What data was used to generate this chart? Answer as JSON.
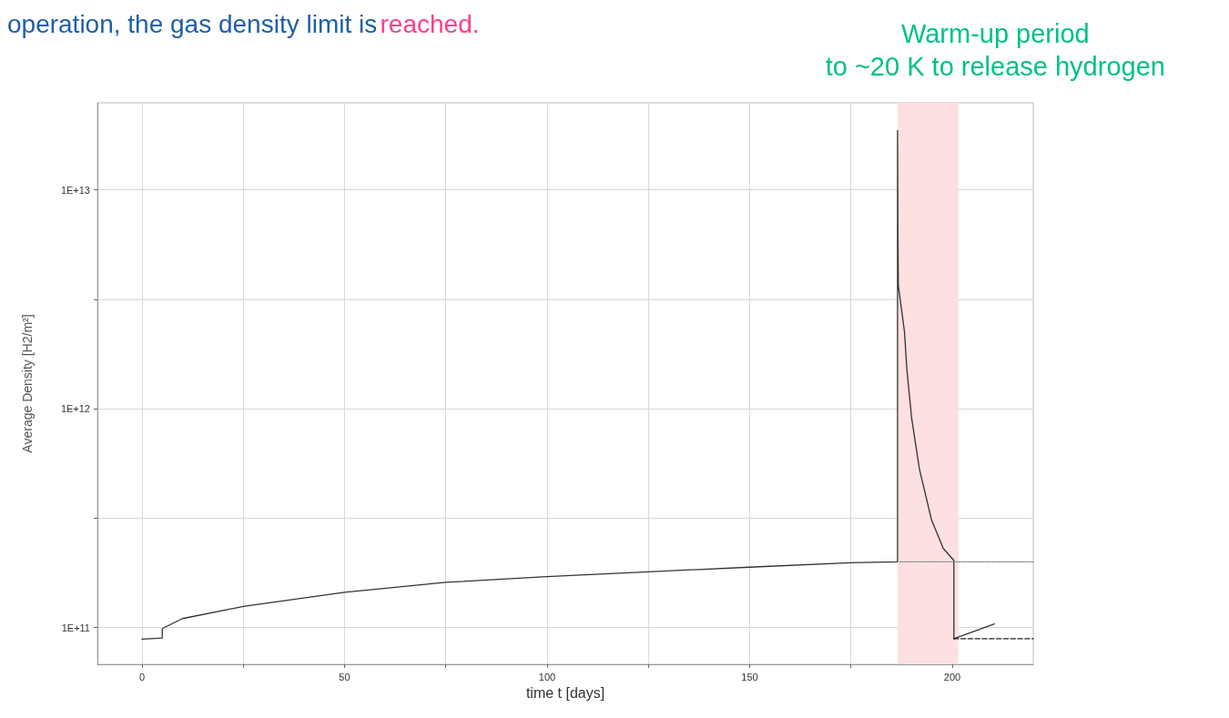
{
  "chart_data": {
    "type": "line",
    "annotations": [
      "operation, the gas density limit is",
      "reached."
    ],
    "xlabel": "time t [days]",
    "ylabel": "Average Density [H2/m²]",
    "log": "y",
    "xlim": [
      -11,
      220
    ],
    "xticks": [
      0,
      {
        "value": 25,
        "label": null
      },
      50,
      {
        "value": 75,
        "label": null
      },
      100,
      {
        "value": 125,
        "label": null
      },
      150,
      {
        "value": 175,
        "label": null
      },
      200
    ],
    "ylim": [
      68000000000.0,
      25000000000000.0
    ],
    "yticks": [
      {
        "value": 100000000000.0,
        "label": "1E+11"
      },
      {
        "value": 316000000000.0,
        "label": null
      },
      {
        "value": 1000000000000.0,
        "label": "1E+12"
      },
      {
        "value": 3160000000000.0,
        "label": null
      },
      {
        "value": 10000000000000.0,
        "label": "1E+13"
      }
    ],
    "grid": true,
    "marker": "none",
    "series": [
      {
        "color": "#333333",
        "line_style": "solid",
        "x": [
          0,
          5,
          5,
          10,
          25,
          50,
          75,
          100,
          125,
          150,
          175,
          186.5,
          186.5,
          186.6,
          186.7,
          188.2,
          188.8,
          190.0,
          191.9,
          194.9,
          197.8,
          200.4,
          200.4,
          210.4
        ],
        "values": [
          88600000000.0,
          89700000000.0,
          99000000000.0,
          110000000000.0,
          125000000000.0,
          145000000000.0,
          161000000000.0,
          171000000000.0,
          180000000000.0,
          189000000000.0,
          198000000000.0,
          200000000000.0,
          18700000000000.0,
          6000000000000.0,
          3650000000000.0,
          2260000000000.0,
          1510000000000.0,
          900000000000.0,
          530000000000.0,
          310000000000.0,
          230000000000.0,
          203000000000.0,
          89000000000.0,
          104000000000.0
        ]
      },
      {
        "color": "#888888",
        "line_style": "dotted",
        "x": [
          187,
          220
        ],
        "values": [
          200000000000.0,
          200000000000.0
        ]
      },
      {
        "color": "#222222",
        "line_style": "dashed",
        "x": [
          200.4,
          220
        ],
        "values": [
          89000000000.0,
          89000000000.0
        ]
      }
    ],
    "bands": [
      {
        "axis": "x",
        "from": 186.5,
        "to": 201.5,
        "color": "#fde0e0",
        "label": "Warm-up period\nto ~20 K to release hydrogen"
      }
    ]
  }
}
